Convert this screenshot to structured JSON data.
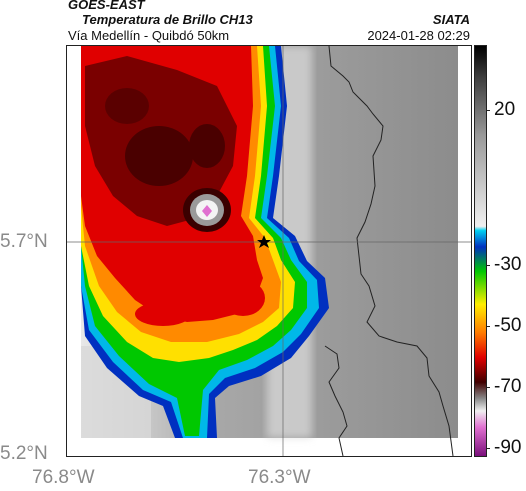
{
  "header": {
    "title_line1": "GOES-EAST",
    "title_line2": "Temperatura de Brillo CH13",
    "organization": "SIATA",
    "subtitle": "Vía Medellín - Quibdó 50km",
    "timestamp": "2024-01-28 02:29"
  },
  "axes": {
    "lat_ticks": [
      "5.7°N",
      "5.2°N"
    ],
    "lon_ticks": [
      "76.8°W",
      "76.3°W"
    ]
  },
  "colorbar": {
    "ticks": [
      "20",
      "-30",
      "-50",
      "-70",
      "-90"
    ],
    "colors": {
      "warm_top": "#000000",
      "gray": "#c8c8c8",
      "cyan": "#00b8e8",
      "green": "#00c800",
      "yellow": "#ffee00",
      "red": "#e00000",
      "darkred": "#5a0000",
      "magenta": "#d040c0"
    }
  },
  "markers": {
    "star_color": "#000000",
    "diamond_color": "#e070d0"
  }
}
